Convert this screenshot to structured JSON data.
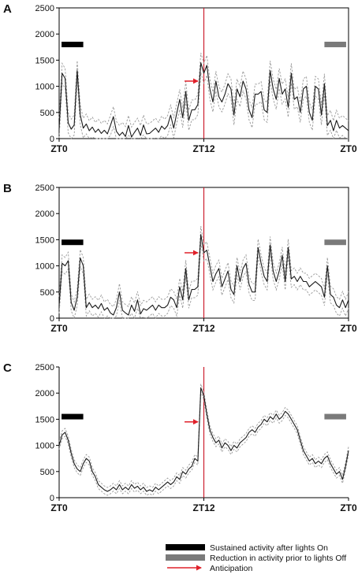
{
  "colors": {
    "mean_line": "#1a1a1a",
    "sem_line": "#9a9a9a",
    "sustained_bar": "#000000",
    "reduction_bar": "#7a7a7a",
    "lights_line": "#cc1f2f",
    "arrow": "#e0202a",
    "axis": "#000000"
  },
  "legend": {
    "sustained": "Sustained activity after lights On",
    "reduction": "Reduction in activity prior to lights Off",
    "anticipation": "Anticipation"
  },
  "chart_data": [
    {
      "type": "line",
      "panel": "A",
      "ylim": [
        0,
        2500
      ],
      "yticks": [
        "0",
        "500",
        "1000",
        "1500",
        "2000",
        "2500"
      ],
      "xlim": [
        0,
        24
      ],
      "xticks": [
        {
          "x": 0,
          "label": "ZT0"
        },
        {
          "x": 12,
          "label": "ZT12"
        },
        {
          "x": 24,
          "label": "ZT0"
        }
      ],
      "lights_marker_x": 12,
      "sustained_bar": [
        0.2,
        2.0
      ],
      "sustained_bar_y": 1800,
      "reduction_bar": [
        22.0,
        23.8
      ],
      "reduction_bar_y": 1800,
      "anticipation_arrow": {
        "x_start": 10.4,
        "x_end": 11.5,
        "y": 1100
      },
      "sem": 190,
      "x": [
        0,
        0.25,
        0.5,
        0.75,
        1,
        1.25,
        1.5,
        1.75,
        2,
        2.25,
        2.5,
        2.75,
        3,
        3.25,
        3.5,
        3.75,
        4,
        4.25,
        4.5,
        4.75,
        5,
        5.25,
        5.5,
        5.75,
        6,
        6.25,
        6.5,
        6.75,
        7,
        7.25,
        7.5,
        7.75,
        8,
        8.25,
        8.5,
        8.75,
        9,
        9.25,
        9.5,
        9.75,
        10,
        10.25,
        10.5,
        10.75,
        11,
        11.25,
        11.5,
        11.75,
        12,
        12.25,
        12.5,
        12.75,
        13,
        13.25,
        13.5,
        13.75,
        14,
        14.25,
        14.5,
        14.75,
        15,
        15.25,
        15.5,
        15.75,
        16,
        16.25,
        16.5,
        16.75,
        17,
        17.25,
        17.5,
        17.75,
        18,
        18.25,
        18.5,
        18.75,
        19,
        19.25,
        19.5,
        19.75,
        20,
        20.25,
        20.5,
        20.75,
        21,
        21.25,
        21.5,
        21.75,
        22,
        22.25,
        22.5,
        22.75,
        23,
        23.25,
        23.5,
        23.75,
        24
      ],
      "values": [
        200,
        1250,
        1150,
        300,
        180,
        260,
        1300,
        450,
        200,
        280,
        150,
        220,
        120,
        180,
        100,
        160,
        90,
        250,
        420,
        140,
        60,
        120,
        40,
        250,
        30,
        120,
        200,
        60,
        260,
        90,
        100,
        150,
        200,
        120,
        240,
        180,
        250,
        450,
        200,
        480,
        750,
        400,
        900,
        350,
        550,
        550,
        650,
        1450,
        1250,
        1400,
        950,
        700,
        1100,
        800,
        700,
        850,
        1050,
        950,
        450,
        950,
        800,
        1100,
        950,
        550,
        400,
        850,
        850,
        900,
        550,
        500,
        1300,
        950,
        750,
        1150,
        850,
        950,
        600,
        1250,
        750,
        800,
        500,
        950,
        1000,
        500,
        350,
        1000,
        950,
        450,
        1050,
        250,
        350,
        150,
        350,
        200,
        250,
        200,
        150
      ]
    },
    {
      "type": "line",
      "panel": "B",
      "ylim": [
        0,
        2500
      ],
      "yticks": [
        "0",
        "500",
        "1000",
        "1500",
        "2000",
        "2500"
      ],
      "xlim": [
        0,
        24
      ],
      "xticks": [
        {
          "x": 0,
          "label": "ZT0"
        },
        {
          "x": 12,
          "label": "ZT12"
        },
        {
          "x": 24,
          "label": "ZT0"
        }
      ],
      "lights_marker_x": 12,
      "sustained_bar": [
        0.2,
        2.0
      ],
      "sustained_bar_y": 1450,
      "reduction_bar": [
        22.0,
        23.8
      ],
      "reduction_bar_y": 1450,
      "anticipation_arrow": {
        "x_start": 10.4,
        "x_end": 11.5,
        "y": 1250
      },
      "sem": 160,
      "x": [
        0,
        0.25,
        0.5,
        0.75,
        1,
        1.25,
        1.5,
        1.75,
        2,
        2.25,
        2.5,
        2.75,
        3,
        3.25,
        3.5,
        3.75,
        4,
        4.25,
        4.5,
        4.75,
        5,
        5.25,
        5.5,
        5.75,
        6,
        6.25,
        6.5,
        6.75,
        7,
        7.25,
        7.5,
        7.75,
        8,
        8.25,
        8.5,
        8.75,
        9,
        9.25,
        9.5,
        9.75,
        10,
        10.25,
        10.5,
        10.75,
        11,
        11.25,
        11.5,
        11.75,
        12,
        12.25,
        12.5,
        12.75,
        13,
        13.25,
        13.5,
        13.75,
        14,
        14.25,
        14.5,
        14.75,
        15,
        15.25,
        15.5,
        15.75,
        16,
        16.25,
        16.5,
        16.75,
        17,
        17.25,
        17.5,
        17.75,
        18,
        18.25,
        18.5,
        18.75,
        19,
        19.25,
        19.5,
        19.75,
        20,
        20.25,
        20.5,
        20.75,
        21,
        21.25,
        21.5,
        21.75,
        22,
        22.25,
        22.5,
        22.75,
        23,
        23.25,
        23.5,
        23.75,
        24
      ],
      "values": [
        250,
        1050,
        1000,
        1100,
        300,
        150,
        400,
        1150,
        1000,
        200,
        300,
        200,
        250,
        180,
        280,
        150,
        200,
        100,
        60,
        200,
        500,
        150,
        100,
        60,
        250,
        130,
        350,
        80,
        180,
        150,
        200,
        250,
        150,
        250,
        200,
        200,
        250,
        400,
        350,
        200,
        600,
        350,
        950,
        350,
        550,
        550,
        600,
        1600,
        1250,
        1300,
        1000,
        700,
        850,
        950,
        600,
        750,
        900,
        550,
        450,
        1000,
        700,
        950,
        1050,
        650,
        500,
        500,
        1350,
        1050,
        800,
        700,
        1400,
        900,
        700,
        900,
        1200,
        700,
        1350,
        750,
        800,
        700,
        800,
        700,
        700,
        600,
        650,
        700,
        650,
        600,
        400,
        1000,
        450,
        400,
        250,
        200,
        350,
        200,
        350
      ]
    },
    {
      "type": "line",
      "panel": "C",
      "ylim": [
        0,
        2500
      ],
      "yticks": [
        "0",
        "500",
        "1000",
        "1500",
        "2000",
        "2500"
      ],
      "xlim": [
        0,
        24
      ],
      "xticks": [
        {
          "x": 0,
          "label": "ZT0"
        },
        {
          "x": 12,
          "label": "ZT12"
        },
        {
          "x": 24,
          "label": "ZT0"
        }
      ],
      "lights_marker_x": 12,
      "sustained_bar": [
        0.2,
        2.0
      ],
      "sustained_bar_y": 1550,
      "reduction_bar": [
        22.0,
        23.8
      ],
      "reduction_bar_y": 1550,
      "anticipation_arrow": {
        "x_start": 10.4,
        "x_end": 11.5,
        "y": 1450
      },
      "sem": 75,
      "x": [
        0,
        0.25,
        0.5,
        0.75,
        1,
        1.25,
        1.5,
        1.75,
        2,
        2.25,
        2.5,
        2.75,
        3,
        3.25,
        3.5,
        3.75,
        4,
        4.25,
        4.5,
        4.75,
        5,
        5.25,
        5.5,
        5.75,
        6,
        6.25,
        6.5,
        6.75,
        7,
        7.25,
        7.5,
        7.75,
        8,
        8.25,
        8.5,
        8.75,
        9,
        9.25,
        9.5,
        9.75,
        10,
        10.25,
        10.5,
        10.75,
        11,
        11.25,
        11.5,
        11.75,
        12,
        12.25,
        12.5,
        12.75,
        13,
        13.25,
        13.5,
        13.75,
        14,
        14.25,
        14.5,
        14.75,
        15,
        15.25,
        15.5,
        15.75,
        16,
        16.25,
        16.5,
        16.75,
        17,
        17.25,
        17.5,
        17.75,
        18,
        18.25,
        18.5,
        18.75,
        19,
        19.25,
        19.5,
        19.75,
        20,
        20.25,
        20.5,
        20.75,
        21,
        21.25,
        21.5,
        21.75,
        22,
        22.25,
        22.5,
        22.75,
        23,
        23.25,
        23.5,
        23.75,
        24
      ],
      "values": [
        1000,
        1200,
        1250,
        1100,
        850,
        650,
        550,
        500,
        650,
        750,
        700,
        500,
        400,
        250,
        200,
        150,
        120,
        150,
        200,
        150,
        250,
        150,
        200,
        150,
        250,
        180,
        220,
        150,
        200,
        120,
        150,
        120,
        200,
        150,
        200,
        250,
        300,
        250,
        300,
        400,
        350,
        500,
        450,
        550,
        600,
        750,
        700,
        2100,
        1950,
        1600,
        1300,
        1150,
        1050,
        1100,
        950,
        1050,
        1000,
        900,
        1000,
        950,
        1050,
        1100,
        1150,
        1250,
        1300,
        1250,
        1350,
        1400,
        1500,
        1450,
        1550,
        1500,
        1600,
        1500,
        1550,
        1650,
        1600,
        1500,
        1400,
        1300,
        1100,
        900,
        800,
        700,
        750,
        650,
        700,
        650,
        750,
        800,
        650,
        550,
        450,
        500,
        350,
        600,
        900
      ]
    }
  ]
}
